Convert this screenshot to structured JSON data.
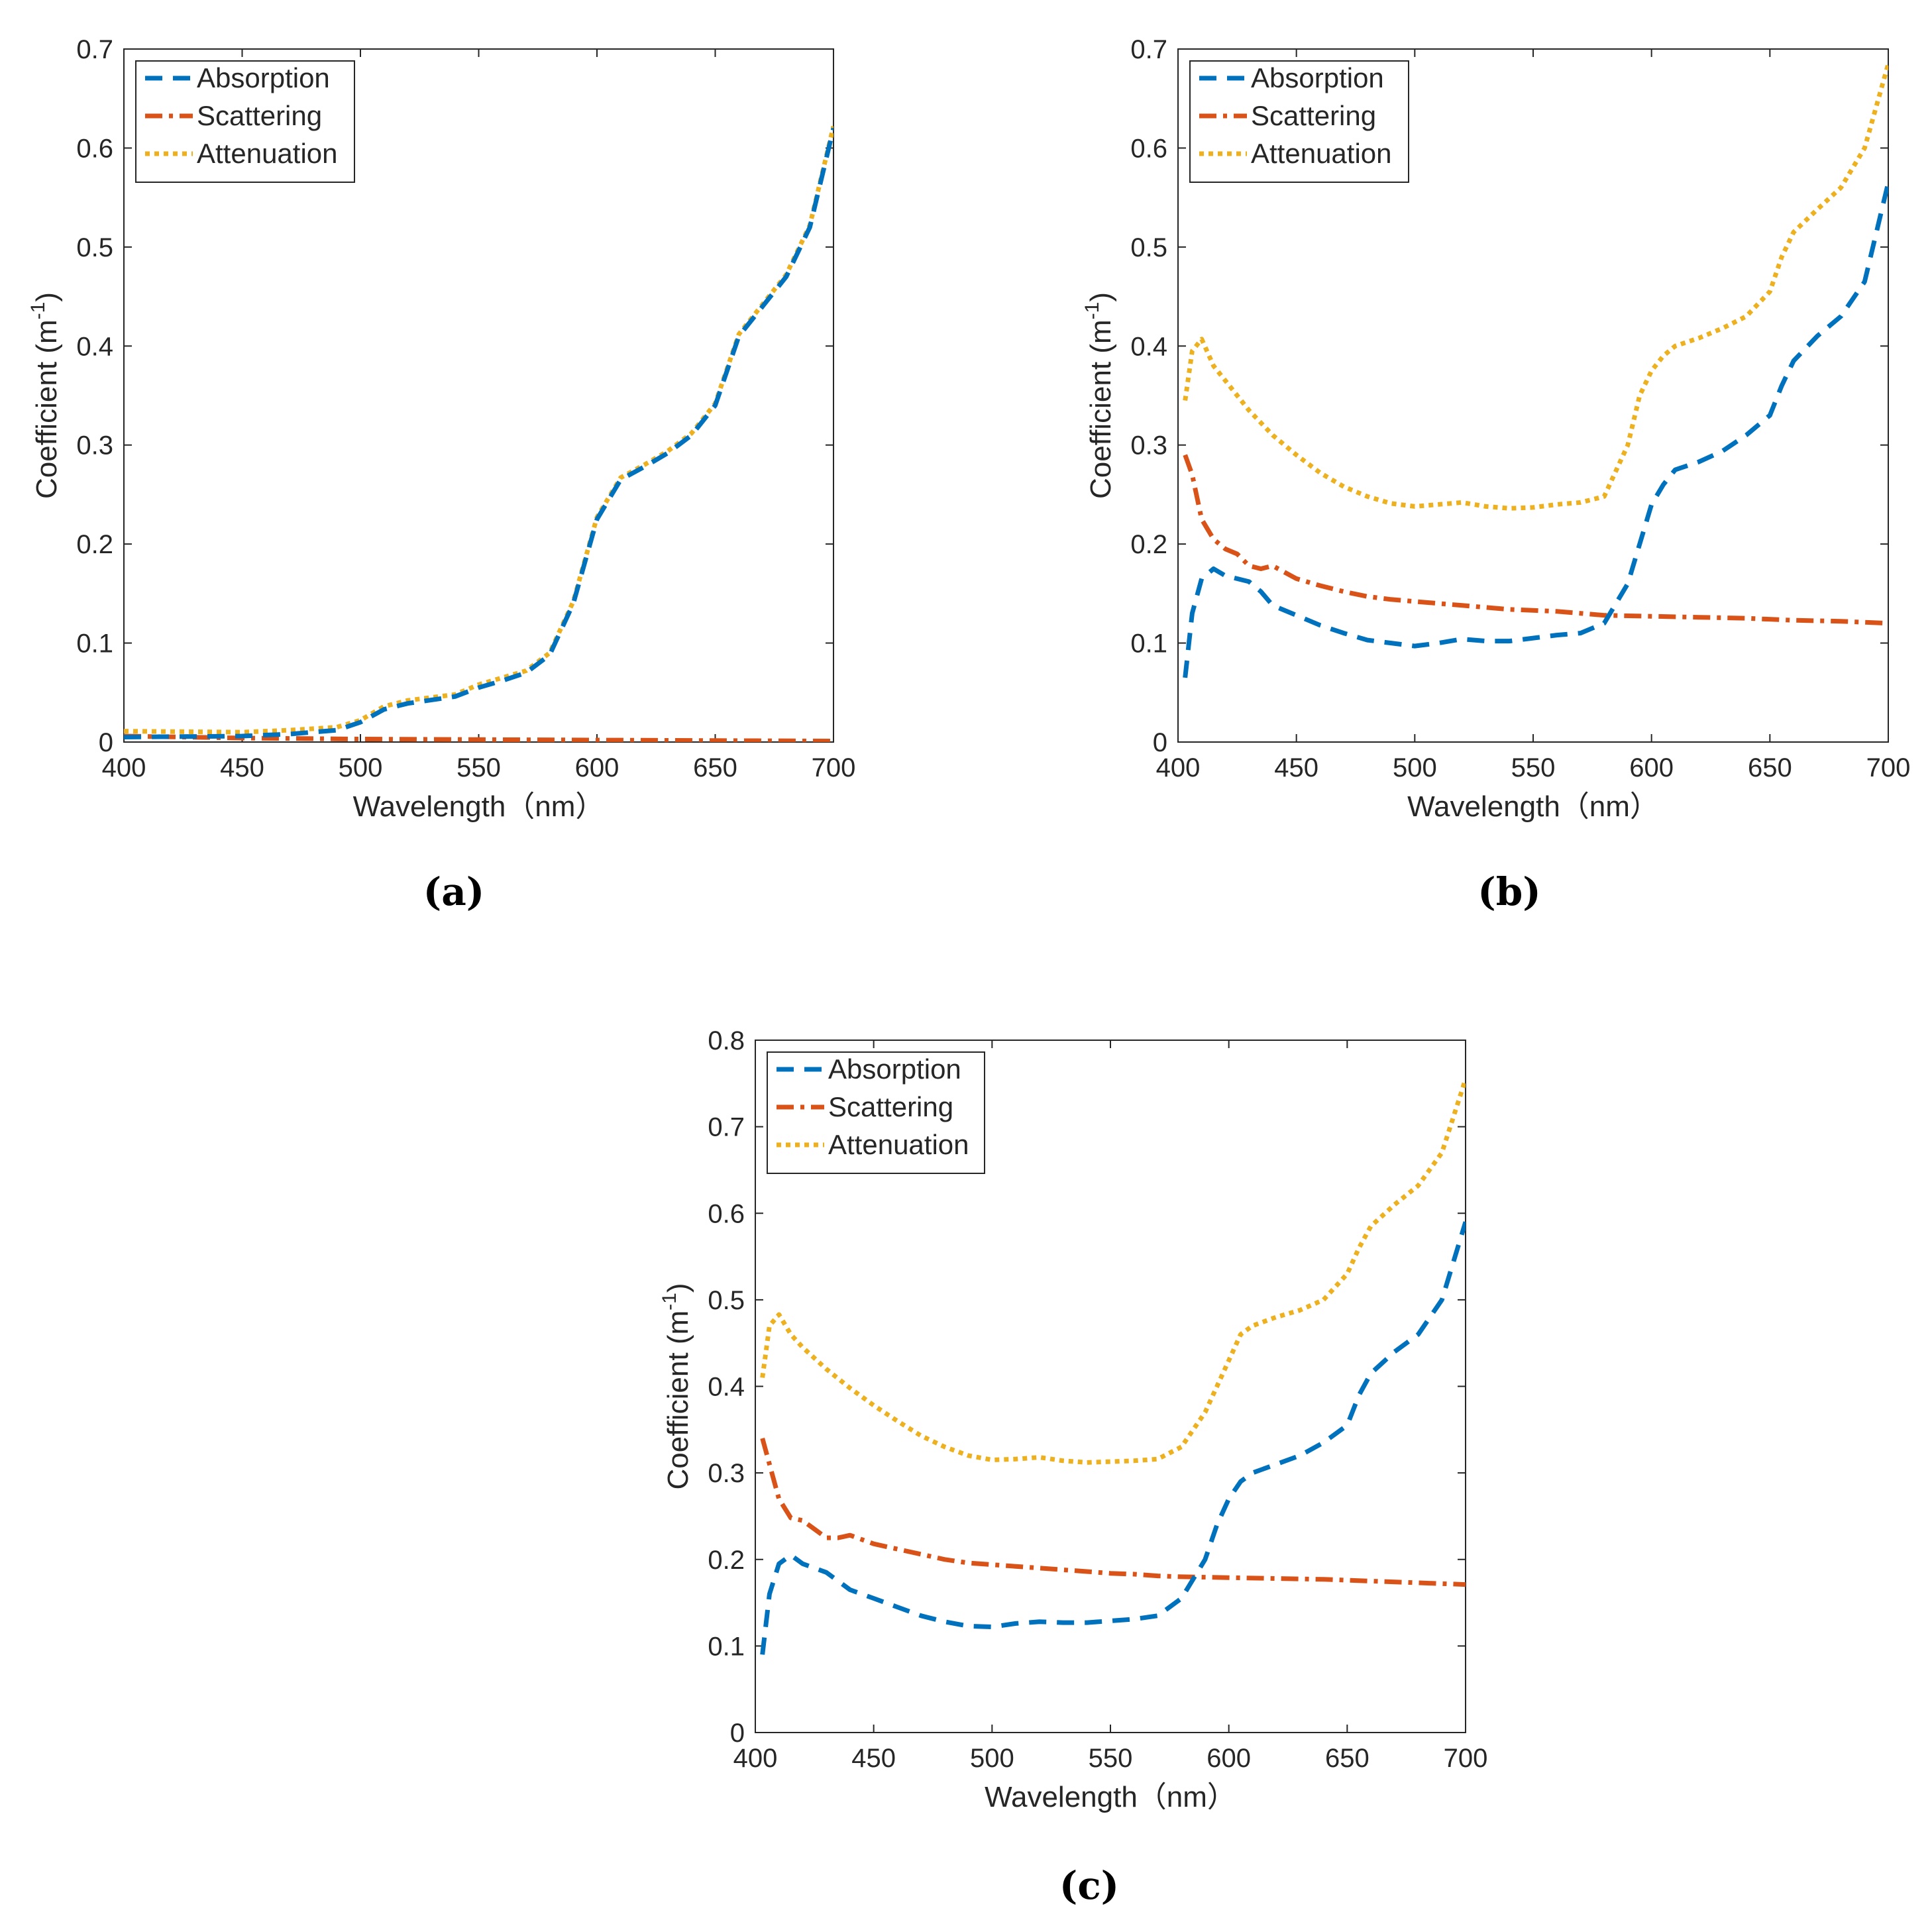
{
  "colors": {
    "absorption": "#0072BD",
    "scattering": "#D95319",
    "attenuation": "#EDB120",
    "axis": "#262626"
  },
  "chart_data": [
    {
      "type": "line",
      "panel_label": "(a)",
      "xlabel": "Wavelength（nm）",
      "ylabel": "Coefficient (m",
      "ylabel_sup": "-1",
      "ylabel_close": ")",
      "xlim": [
        400,
        700
      ],
      "ylim": [
        0,
        0.7
      ],
      "xticks": [
        400,
        450,
        500,
        550,
        600,
        650,
        700
      ],
      "yticks": [
        0,
        0.1,
        0.2,
        0.3,
        0.4,
        0.5,
        0.6,
        0.7
      ],
      "legend_position": "top-left",
      "series": [
        {
          "name": "Absorption",
          "style": "dashed",
          "x": [
            400,
            450,
            470,
            490,
            500,
            510,
            520,
            540,
            550,
            560,
            570,
            580,
            590,
            600,
            610,
            620,
            630,
            640,
            650,
            660,
            670,
            680,
            690,
            700
          ],
          "values": [
            0.005,
            0.006,
            0.008,
            0.012,
            0.02,
            0.033,
            0.039,
            0.046,
            0.055,
            0.062,
            0.07,
            0.088,
            0.14,
            0.225,
            0.265,
            0.278,
            0.292,
            0.31,
            0.34,
            0.41,
            0.44,
            0.47,
            0.52,
            0.62
          ]
        },
        {
          "name": "Scattering",
          "style": "dashdot",
          "x": [
            400,
            450,
            500,
            550,
            600,
            650,
            700
          ],
          "values": [
            0.006,
            0.004,
            0.003,
            0.0025,
            0.002,
            0.0015,
            0.001
          ]
        },
        {
          "name": "Attenuation",
          "style": "dotted",
          "x": [
            400,
            450,
            470,
            490,
            500,
            510,
            520,
            540,
            550,
            560,
            570,
            580,
            590,
            600,
            610,
            620,
            630,
            640,
            650,
            660,
            670,
            680,
            690,
            700
          ],
          "values": [
            0.011,
            0.01,
            0.012,
            0.015,
            0.022,
            0.036,
            0.042,
            0.048,
            0.058,
            0.065,
            0.072,
            0.09,
            0.142,
            0.227,
            0.267,
            0.28,
            0.294,
            0.312,
            0.342,
            0.412,
            0.442,
            0.472,
            0.522,
            0.622
          ]
        }
      ]
    },
    {
      "type": "line",
      "panel_label": "(b)",
      "xlabel": "Wavelength（nm）",
      "ylabel": "Coefficient (m",
      "ylabel_sup": "-1",
      "ylabel_close": ")",
      "xlim": [
        400,
        700
      ],
      "ylim": [
        0,
        0.7
      ],
      "xticks": [
        400,
        450,
        500,
        550,
        600,
        650,
        700
      ],
      "yticks": [
        0,
        0.1,
        0.2,
        0.3,
        0.4,
        0.5,
        0.6,
        0.7
      ],
      "legend_position": "top-left",
      "series": [
        {
          "name": "Absorption",
          "style": "dashed",
          "x": [
            403,
            406,
            410,
            415,
            420,
            430,
            435,
            440,
            450,
            460,
            470,
            480,
            490,
            500,
            510,
            520,
            530,
            540,
            550,
            560,
            570,
            580,
            590,
            595,
            600,
            605,
            610,
            620,
            630,
            640,
            650,
            655,
            660,
            670,
            680,
            690,
            700
          ],
          "values": [
            0.065,
            0.13,
            0.165,
            0.175,
            0.168,
            0.162,
            0.152,
            0.138,
            0.128,
            0.118,
            0.11,
            0.103,
            0.1,
            0.097,
            0.1,
            0.104,
            0.102,
            0.102,
            0.105,
            0.108,
            0.11,
            0.12,
            0.16,
            0.2,
            0.24,
            0.26,
            0.275,
            0.283,
            0.294,
            0.31,
            0.33,
            0.36,
            0.385,
            0.41,
            0.43,
            0.465,
            0.565
          ]
        },
        {
          "name": "Scattering",
          "style": "dashdot",
          "x": [
            403,
            406,
            410,
            415,
            420,
            425,
            430,
            435,
            440,
            450,
            460,
            470,
            480,
            490,
            500,
            510,
            520,
            530,
            540,
            550,
            560,
            570,
            580,
            600,
            620,
            640,
            660,
            680,
            700
          ],
          "values": [
            0.29,
            0.27,
            0.225,
            0.205,
            0.195,
            0.19,
            0.178,
            0.175,
            0.178,
            0.165,
            0.158,
            0.152,
            0.147,
            0.144,
            0.142,
            0.14,
            0.138,
            0.136,
            0.134,
            0.133,
            0.132,
            0.13,
            0.128,
            0.127,
            0.126,
            0.125,
            0.123,
            0.122,
            0.12
          ]
        },
        {
          "name": "Attenuation",
          "style": "dotted",
          "x": [
            403,
            406,
            410,
            415,
            420,
            430,
            440,
            450,
            460,
            470,
            480,
            490,
            500,
            510,
            520,
            530,
            540,
            550,
            560,
            570,
            580,
            590,
            595,
            600,
            605,
            610,
            620,
            630,
            640,
            650,
            655,
            660,
            670,
            680,
            690,
            700
          ],
          "values": [
            0.345,
            0.395,
            0.407,
            0.38,
            0.365,
            0.335,
            0.31,
            0.29,
            0.272,
            0.258,
            0.248,
            0.241,
            0.238,
            0.24,
            0.242,
            0.238,
            0.236,
            0.237,
            0.24,
            0.242,
            0.248,
            0.3,
            0.35,
            0.375,
            0.39,
            0.4,
            0.408,
            0.418,
            0.43,
            0.455,
            0.49,
            0.515,
            0.538,
            0.56,
            0.6,
            0.685
          ]
        }
      ]
    },
    {
      "type": "line",
      "panel_label": "(c)",
      "xlabel": "Wavelength（nm）",
      "ylabel": "Coefficient (m",
      "ylabel_sup": "-1",
      "ylabel_close": ")",
      "xlim": [
        400,
        700
      ],
      "ylim": [
        0,
        0.8
      ],
      "xticks": [
        400,
        450,
        500,
        550,
        600,
        650,
        700
      ],
      "yticks": [
        0,
        0.1,
        0.2,
        0.3,
        0.4,
        0.5,
        0.6,
        0.7,
        0.8
      ],
      "legend_position": "top-left",
      "series": [
        {
          "name": "Absorption",
          "style": "dashed",
          "x": [
            403,
            406,
            410,
            415,
            420,
            430,
            435,
            440,
            450,
            460,
            470,
            480,
            490,
            500,
            510,
            520,
            530,
            540,
            550,
            560,
            570,
            580,
            590,
            595,
            600,
            605,
            610,
            620,
            630,
            640,
            650,
            655,
            660,
            670,
            680,
            690,
            700
          ],
          "values": [
            0.09,
            0.16,
            0.195,
            0.205,
            0.195,
            0.185,
            0.175,
            0.165,
            0.155,
            0.145,
            0.135,
            0.128,
            0.123,
            0.122,
            0.126,
            0.128,
            0.127,
            0.127,
            0.129,
            0.131,
            0.135,
            0.155,
            0.2,
            0.24,
            0.27,
            0.29,
            0.3,
            0.31,
            0.32,
            0.335,
            0.355,
            0.39,
            0.415,
            0.44,
            0.46,
            0.5,
            0.59
          ]
        },
        {
          "name": "Scattering",
          "style": "dashdot",
          "x": [
            403,
            406,
            410,
            415,
            420,
            425,
            430,
            435,
            440,
            450,
            460,
            470,
            480,
            490,
            500,
            510,
            520,
            530,
            540,
            550,
            560,
            570,
            580,
            600,
            620,
            640,
            660,
            680,
            700
          ],
          "values": [
            0.34,
            0.31,
            0.27,
            0.248,
            0.245,
            0.235,
            0.225,
            0.225,
            0.228,
            0.218,
            0.212,
            0.206,
            0.2,
            0.196,
            0.194,
            0.192,
            0.19,
            0.188,
            0.186,
            0.184,
            0.183,
            0.181,
            0.18,
            0.179,
            0.178,
            0.177,
            0.175,
            0.173,
            0.171
          ]
        },
        {
          "name": "Attenuation",
          "style": "dotted",
          "x": [
            403,
            406,
            410,
            415,
            420,
            430,
            440,
            450,
            460,
            470,
            480,
            490,
            500,
            510,
            520,
            530,
            540,
            550,
            560,
            570,
            580,
            590,
            595,
            600,
            605,
            610,
            620,
            630,
            640,
            650,
            655,
            660,
            670,
            680,
            690,
            700
          ],
          "values": [
            0.41,
            0.47,
            0.483,
            0.46,
            0.445,
            0.42,
            0.398,
            0.378,
            0.36,
            0.343,
            0.33,
            0.32,
            0.315,
            0.316,
            0.318,
            0.314,
            0.312,
            0.313,
            0.314,
            0.316,
            0.33,
            0.37,
            0.4,
            0.43,
            0.46,
            0.47,
            0.48,
            0.488,
            0.5,
            0.53,
            0.56,
            0.585,
            0.61,
            0.632,
            0.67,
            0.755
          ]
        }
      ]
    }
  ]
}
